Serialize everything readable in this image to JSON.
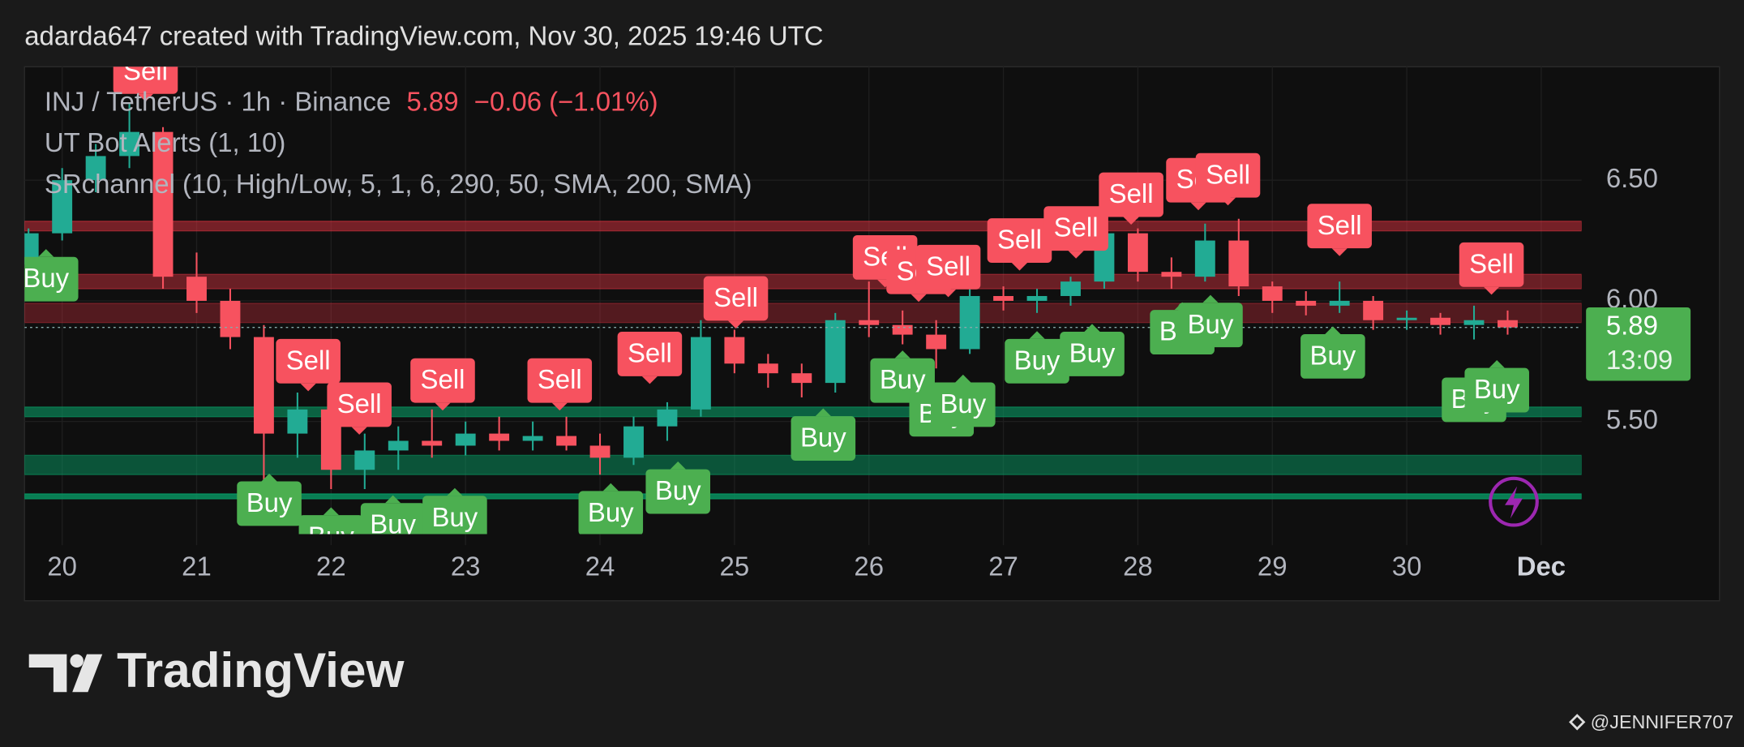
{
  "header": {
    "caption": "adarda647 created with TradingView.com, Nov 30, 2025 19:46 UTC",
    "symbol": "INJ / TetherUS · 1h · Binance",
    "price": "5.89",
    "change": "−0.06 (−1.01%)",
    "indicator_1": "UT Bot Alerts (1, 10)",
    "indicator_2": "SRchannel (10, High/Low, 5, 1, 6, 290, 50, SMA, 200, SMA)"
  },
  "chart_data": {
    "type": "candlestick",
    "up_color": "#22ab94",
    "down_color": "#f7525f",
    "x": [
      19.75,
      20,
      20.25,
      20.5,
      20.75,
      21,
      21.25,
      21.5,
      21.75,
      22,
      22.25,
      22.5,
      22.75,
      23,
      23.25,
      23.5,
      23.75,
      24,
      24.25,
      24.5,
      24.75,
      25,
      25.25,
      25.5,
      25.75,
      26,
      26.25,
      26.5,
      26.75,
      27,
      27.25,
      27.5,
      27.75,
      28,
      28.25,
      28.5,
      28.75,
      29,
      29.25,
      29.5,
      29.75,
      30,
      30.25,
      30.5,
      30.75
    ],
    "open": [
      6.15,
      6.28,
      6.5,
      6.6,
      6.7,
      6.1,
      6.0,
      5.85,
      5.45,
      5.55,
      5.3,
      5.38,
      5.42,
      5.4,
      5.45,
      5.42,
      5.44,
      5.4,
      5.35,
      5.48,
      5.55,
      5.85,
      5.74,
      5.7,
      5.66,
      5.92,
      5.9,
      5.86,
      5.8,
      6.02,
      6.0,
      6.02,
      6.08,
      6.28,
      6.12,
      6.1,
      6.25,
      6.06,
      6.0,
      5.98,
      6.0,
      5.92,
      5.93,
      5.9,
      5.92
    ],
    "high": [
      6.3,
      6.55,
      6.65,
      6.82,
      6.72,
      6.2,
      6.05,
      5.9,
      5.62,
      5.6,
      5.45,
      5.48,
      5.55,
      5.5,
      5.52,
      5.5,
      5.52,
      5.45,
      5.52,
      5.58,
      5.92,
      5.88,
      5.78,
      5.74,
      5.95,
      6.08,
      5.96,
      5.92,
      6.06,
      6.06,
      6.05,
      6.1,
      6.32,
      6.3,
      6.18,
      6.32,
      6.34,
      6.08,
      6.04,
      6.08,
      6.02,
      5.96,
      5.95,
      5.98,
      5.96
    ],
    "low": [
      6.1,
      6.25,
      6.45,
      6.55,
      6.05,
      5.95,
      5.8,
      5.25,
      5.35,
      5.22,
      5.22,
      5.3,
      5.35,
      5.36,
      5.38,
      5.38,
      5.38,
      5.28,
      5.32,
      5.42,
      5.52,
      5.7,
      5.64,
      5.6,
      5.62,
      5.85,
      5.82,
      5.72,
      5.78,
      5.96,
      5.95,
      5.98,
      6.05,
      6.08,
      6.05,
      6.08,
      6.02,
      5.95,
      5.94,
      5.95,
      5.88,
      5.88,
      5.86,
      5.84,
      5.86
    ],
    "close": [
      6.28,
      6.5,
      6.6,
      6.7,
      6.1,
      6.0,
      5.85,
      5.45,
      5.55,
      5.3,
      5.38,
      5.42,
      5.4,
      5.45,
      5.42,
      5.44,
      5.4,
      5.35,
      5.48,
      5.55,
      5.85,
      5.74,
      5.7,
      5.66,
      5.92,
      5.9,
      5.86,
      5.8,
      6.02,
      6.0,
      6.02,
      6.08,
      6.28,
      6.12,
      6.1,
      6.25,
      6.06,
      6.0,
      5.98,
      6.0,
      5.92,
      5.93,
      5.9,
      5.92,
      5.89
    ],
    "xlim": [
      19.72,
      31.3
    ],
    "ylim": [
      4.96,
      6.97
    ],
    "xticks": [
      20,
      21,
      22,
      23,
      24,
      25,
      26,
      27,
      28,
      29,
      30,
      {
        "value": 31,
        "label": "Dec"
      }
    ],
    "yticks": [
      {
        "value": 6.5,
        "label": "6.50"
      },
      {
        "value": 6,
        "label": "6.00"
      },
      {
        "value": 5.5,
        "label": "5.50"
      }
    ],
    "grid": true,
    "zones": [
      {
        "low": 6.29,
        "high": 6.33,
        "color": "rgba(242,54,69,0.45)"
      },
      {
        "low": 6.05,
        "high": 6.11,
        "color": "rgba(242,54,69,0.4)"
      },
      {
        "low": 5.91,
        "high": 5.99,
        "color": "rgba(242,54,69,0.3)"
      },
      {
        "low": 5.52,
        "high": 5.56,
        "color": "rgba(8,153,100,0.6)"
      },
      {
        "low": 5.28,
        "high": 5.36,
        "color": "rgba(8,153,100,0.5)"
      },
      {
        "low": 5.18,
        "high": 5.2,
        "color": "rgba(8,153,100,0.8)"
      }
    ],
    "last_price": 5.89,
    "countdown": "13:09",
    "price_color": "#4caf50",
    "signals": [
      {
        "label": "Sell",
        "x": 20.62,
        "y": 6.95
      },
      {
        "label": "Sell",
        "x": 21.83,
        "y": 5.75
      },
      {
        "label": "Sell",
        "x": 22.21,
        "y": 5.57
      },
      {
        "label": "Sell",
        "x": 22.83,
        "y": 5.67
      },
      {
        "label": "Sell",
        "x": 23.7,
        "y": 5.67
      },
      {
        "label": "Sell",
        "x": 24.37,
        "y": 5.78
      },
      {
        "label": "Sell",
        "x": 25.01,
        "y": 6.01
      },
      {
        "label": "Sell",
        "x": 26.12,
        "y": 6.18
      },
      {
        "label": "Sell",
        "x": 26.37,
        "y": 6.12
      },
      {
        "label": "Sell",
        "x": 26.59,
        "y": 6.14
      },
      {
        "label": "Sell",
        "x": 27.12,
        "y": 6.25
      },
      {
        "label": "Sell",
        "x": 27.54,
        "y": 6.3
      },
      {
        "label": "Sell",
        "x": 27.95,
        "y": 6.44
      },
      {
        "label": "Sell",
        "x": 28.45,
        "y": 6.5
      },
      {
        "label": "Sell",
        "x": 28.67,
        "y": 6.52
      },
      {
        "label": "Sell",
        "x": 29.5,
        "y": 6.31
      },
      {
        "label": "Sell",
        "x": 30.63,
        "y": 6.15
      },
      {
        "label": "Buy",
        "x": 19.88,
        "y": 6.09
      },
      {
        "label": "Buy",
        "x": 21.54,
        "y": 5.16
      },
      {
        "label": "Buy",
        "x": 22.0,
        "y": 5.02
      },
      {
        "label": "Buy",
        "x": 22.46,
        "y": 5.07
      },
      {
        "label": "Buy",
        "x": 22.92,
        "y": 5.1
      },
      {
        "label": "Buy",
        "x": 24.08,
        "y": 5.12
      },
      {
        "label": "Buy",
        "x": 24.58,
        "y": 5.21
      },
      {
        "label": "Buy",
        "x": 25.66,
        "y": 5.43
      },
      {
        "label": "Buy",
        "x": 26.25,
        "y": 5.67
      },
      {
        "label": "Buy",
        "x": 26.54,
        "y": 5.53
      },
      {
        "label": "Buy",
        "x": 26.7,
        "y": 5.57
      },
      {
        "label": "Buy",
        "x": 27.25,
        "y": 5.75
      },
      {
        "label": "Buy",
        "x": 27.66,
        "y": 5.78
      },
      {
        "label": "Buy",
        "x": 28.33,
        "y": 5.87
      },
      {
        "label": "Buy",
        "x": 28.54,
        "y": 5.9
      },
      {
        "label": "Buy",
        "x": 29.45,
        "y": 5.77
      },
      {
        "label": "Buy",
        "x": 30.5,
        "y": 5.59
      },
      {
        "label": "Buy",
        "x": 30.67,
        "y": 5.63
      }
    ]
  },
  "footer": {
    "brand": "TradingView",
    "credit": "@JENNIFER707"
  }
}
